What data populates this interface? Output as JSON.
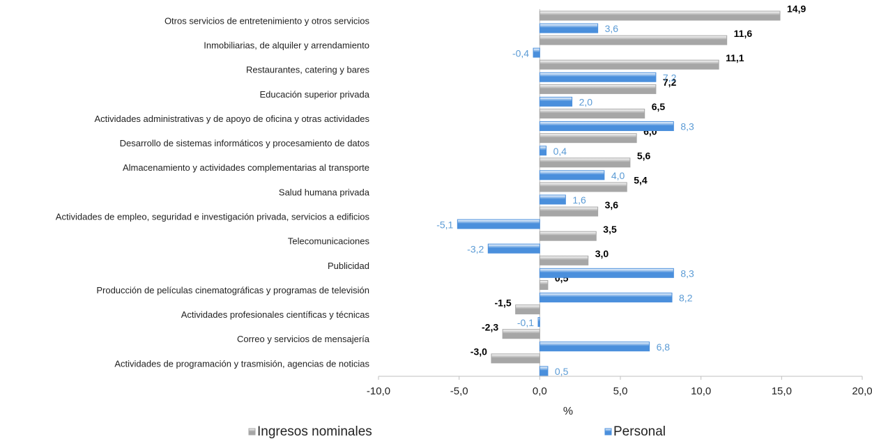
{
  "chart_data": {
    "type": "bar",
    "orientation": "horizontal",
    "x_label": "%",
    "categories": [
      "Otros servicios de entretenimiento y otros servicios",
      "Inmobiliarias, de alquiler y arrendamiento",
      "Restaurantes, catering y bares",
      "Educación superior privada",
      "Actividades administrativas y de apoyo de oficina y otras actividades",
      "Desarrollo de sistemas informáticos y procesamiento de datos",
      "Almacenamiento y actividades complementarias al transporte",
      "Salud humana privada",
      "Actividades de empleo, seguridad e investigación privada, servicios a edificios",
      "Telecomunicaciones",
      "Publicidad",
      "Producción de películas cinematográficas y programas de televisión",
      "Actividades profesionales científicas y técnicas",
      "Correo y servicios de mensajería",
      "Actividades de programación y trasmisión, agencias de noticias"
    ],
    "series": [
      {
        "name": "Ingresos nominales",
        "color": "#a6a6a6",
        "label_color": "#000000",
        "values": [
          14.9,
          11.6,
          11.1,
          7.2,
          6.5,
          6.0,
          5.6,
          5.4,
          3.6,
          3.5,
          3.0,
          0.5,
          -1.5,
          -2.3,
          -3.0
        ],
        "value_labels": [
          "14,9",
          "11,6",
          "11,1",
          "7,2",
          "6,5",
          "6,0",
          "5,6",
          "5,4",
          "3,6",
          "3,5",
          "3,0",
          "0,5",
          "-1,5",
          "-2,3",
          "-3,0"
        ]
      },
      {
        "name": "Personal",
        "color": "#4a8fdc",
        "label_color": "#5b9bd5",
        "values": [
          3.6,
          -0.4,
          7.2,
          2.0,
          8.3,
          0.4,
          4.0,
          1.6,
          -5.1,
          -3.2,
          8.3,
          8.2,
          -0.1,
          6.8,
          0.5
        ],
        "value_labels": [
          "3,6",
          "-0,4",
          "7,2",
          "2,0",
          "8,3",
          "0,4",
          "4,0",
          "1,6",
          "-5,1",
          "-3,2",
          "8,3",
          "8,2",
          "-0,1",
          "6,8",
          "0,5"
        ]
      }
    ],
    "xlim": [
      -10,
      20
    ],
    "xticks": [
      {
        "value": -10,
        "label": "-10,0"
      },
      {
        "value": -5,
        "label": "-5,0"
      },
      {
        "value": 0,
        "label": "0,0"
      },
      {
        "value": 5,
        "label": "5,0"
      },
      {
        "value": 10,
        "label": "10,0"
      },
      {
        "value": 15,
        "label": "15,0"
      },
      {
        "value": 20,
        "label": "20,0"
      }
    ],
    "legend": "bottom",
    "grid": false
  }
}
